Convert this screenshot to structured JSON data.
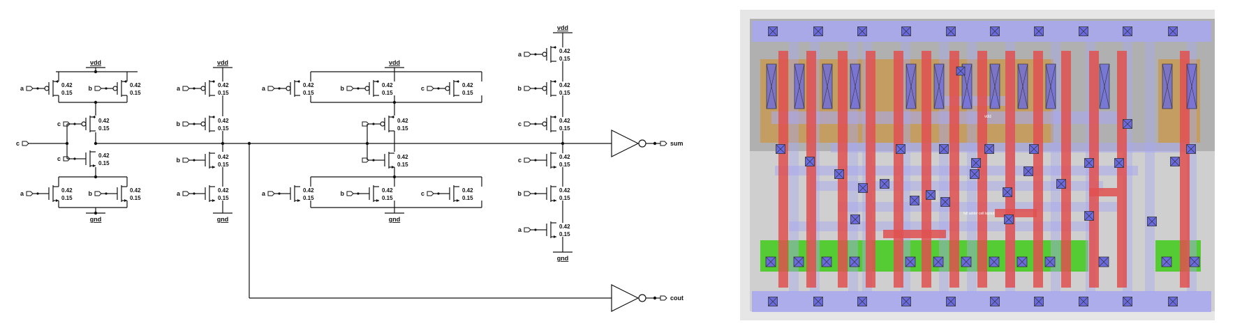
{
  "schematic": {
    "rails": {
      "vdd": "vdd",
      "gnd": "gnd"
    },
    "nodes": {
      "a": "a",
      "b": "b",
      "c": "c"
    },
    "sizes": {
      "w": "0.42",
      "l": "0.15"
    },
    "outputs": {
      "sum": "sum",
      "cout": "cout"
    }
  },
  "layout": {
    "vdd_label": "vdd",
    "mid_label": "full adder cell layout"
  },
  "colors": {
    "metal": "#a9a9ee",
    "poly": "#e05050",
    "diff_p": "#c89a55",
    "diff_n": "#55cc33",
    "contact": "#6a6adf",
    "nwell": "#b0b0b0",
    "substrate": "#cfcfcf"
  }
}
